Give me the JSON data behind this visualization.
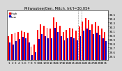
{
  "title": "Milwaukee/Gen. Mitch. Int'l=30.054",
  "background_color": "#d8d8d8",
  "plot_bg": "#ffffff",
  "bar_width": 0.42,
  "x_labels": [
    "1",
    "2",
    "3",
    "4",
    "5",
    "6",
    "7",
    "8",
    "9",
    "10",
    "11",
    "12",
    "13",
    "14",
    "15",
    "16",
    "17",
    "18",
    "19",
    "20",
    "21",
    "22",
    "23",
    "24",
    "25",
    "26",
    "27",
    "28",
    "29",
    "30",
    "31"
  ],
  "highs": [
    29.98,
    30.02,
    30.05,
    30.08,
    30.1,
    30.08,
    30.05,
    29.72,
    29.78,
    30.12,
    30.25,
    30.22,
    30.18,
    30.15,
    30.42,
    30.3,
    30.22,
    30.08,
    30.12,
    30.18,
    30.15,
    30.1,
    30.2,
    30.32,
    30.4,
    30.35,
    30.25,
    30.3,
    30.22,
    30.15,
    30.08
  ],
  "lows": [
    29.82,
    29.78,
    29.85,
    29.9,
    29.95,
    29.92,
    29.82,
    29.52,
    29.58,
    29.9,
    30.02,
    29.98,
    29.92,
    29.92,
    30.18,
    30.08,
    29.98,
    29.88,
    29.92,
    29.95,
    29.92,
    29.88,
    29.98,
    30.1,
    30.15,
    30.12,
    30.02,
    30.05,
    30.0,
    29.92,
    29.85
  ],
  "high_color": "#ff0000",
  "low_color": "#0000cc",
  "vline_x": [
    21.5,
    22.5
  ],
  "ylim_min": 29.4,
  "ylim_max": 30.6,
  "yticks": [
    29.5,
    29.6,
    29.7,
    29.8,
    29.9,
    30.0,
    30.1,
    30.2,
    30.3,
    30.4,
    30.5
  ],
  "ytick_labels": [
    "29.5",
    "29.6",
    "29.7",
    "29.8",
    "29.9",
    "30.0",
    "30.1",
    "30.2",
    "30.3",
    "30.4",
    "30.5"
  ],
  "title_fontsize": 3.8,
  "tick_fontsize": 3.0,
  "legend_dot_size": 3.0
}
